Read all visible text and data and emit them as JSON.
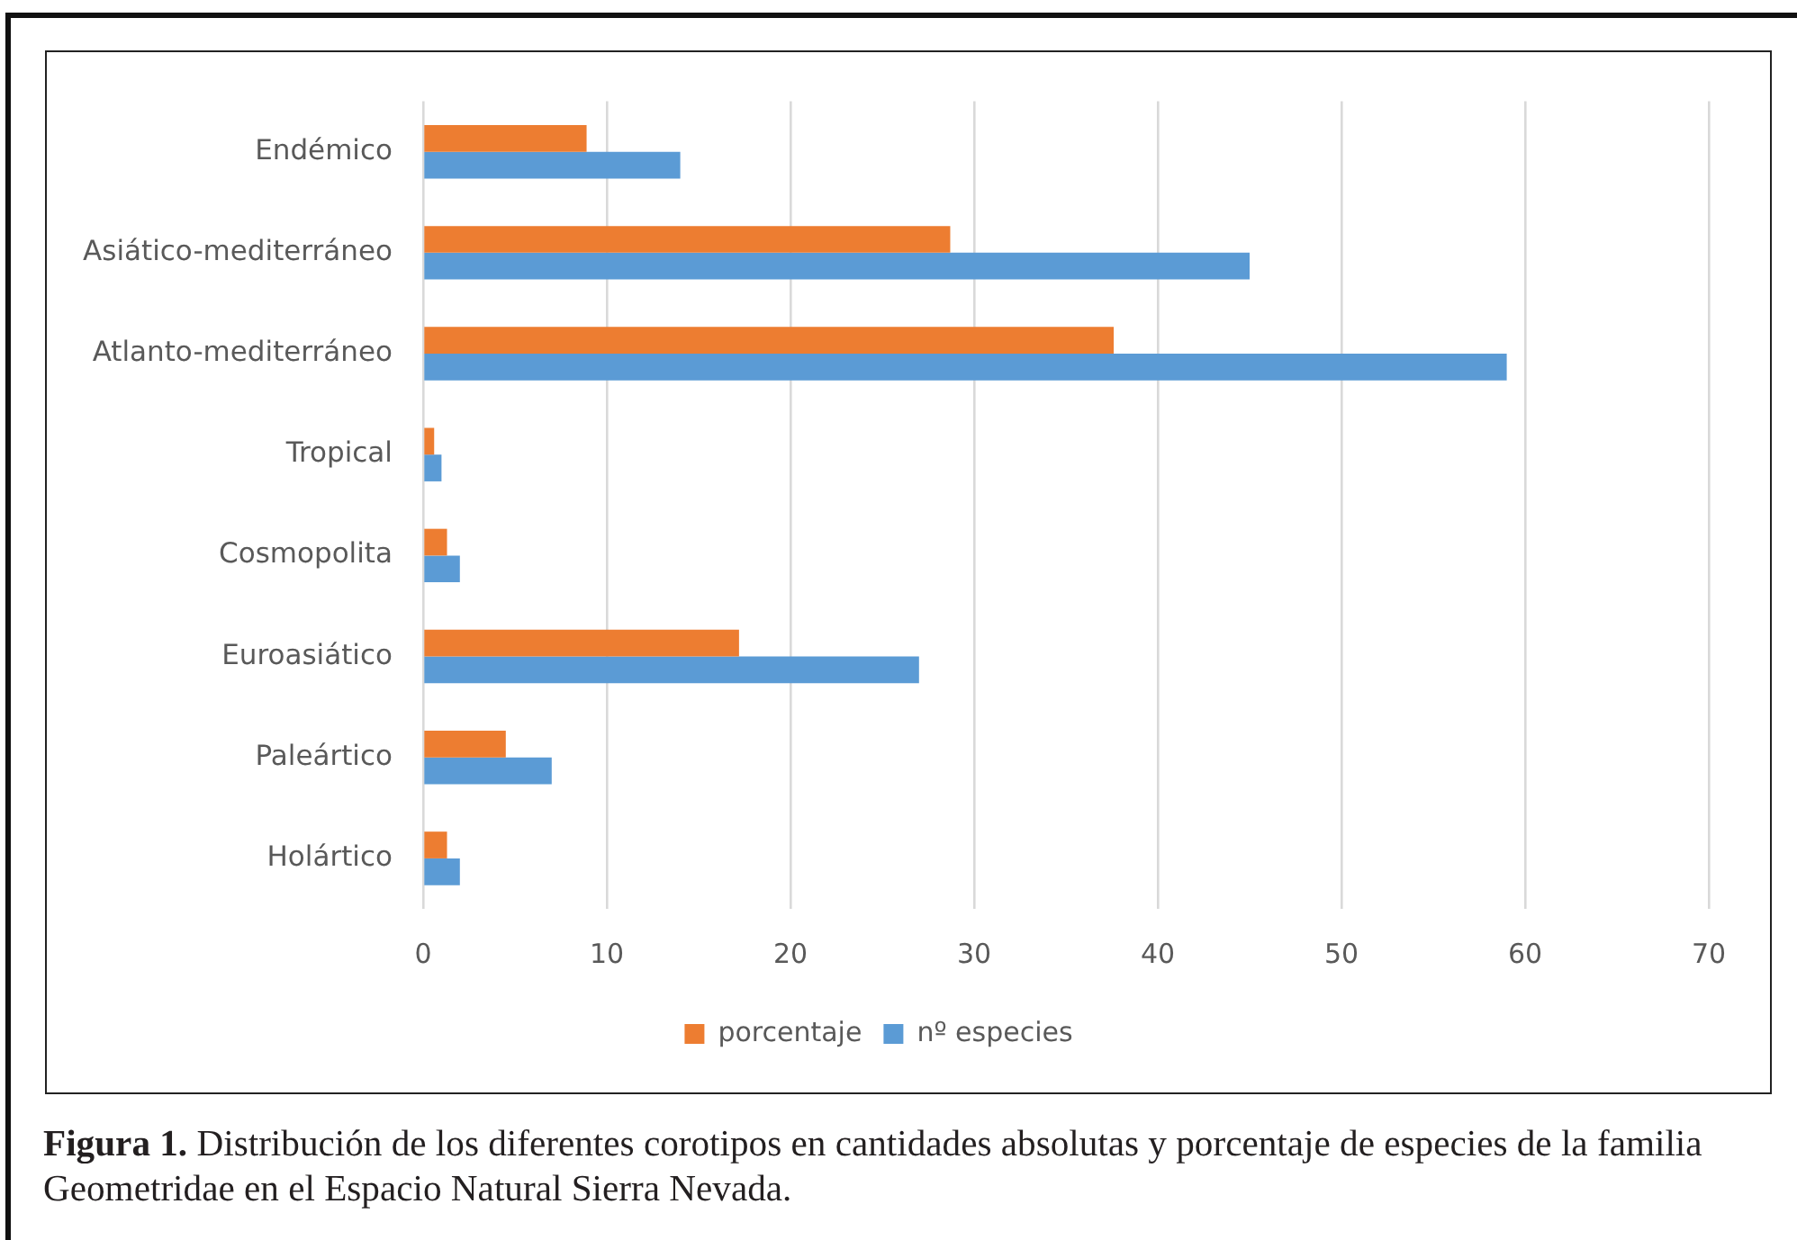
{
  "chart_data": {
    "type": "bar",
    "orientation": "horizontal",
    "categories": [
      "Endémico",
      "Asiático-mediterráneo",
      "Atlanto-mediterráneo",
      "Tropical",
      "Cosmopolita",
      "Euroasiático",
      "Paleártico",
      "Holártico"
    ],
    "series": [
      {
        "name": "porcentaje",
        "color": "#ed7d31",
        "values": [
          8.9,
          28.7,
          37.6,
          0.6,
          1.3,
          17.2,
          4.5,
          1.3
        ]
      },
      {
        "name": "nº especies",
        "color": "#5b9bd5",
        "values": [
          14,
          45,
          59,
          1,
          2,
          27,
          7,
          2
        ]
      }
    ],
    "xlim": [
      0,
      70
    ],
    "xticks": [
      0,
      10,
      20,
      30,
      40,
      50,
      60,
      70
    ],
    "grid": "x",
    "legend": "bottom",
    "annotations": [
      "Figura 1. Distribución de los diferentes corotipos en cantidades absolutas y porcentaje de especies de la familia Geometridae en el Espacio Natural Sierra Nevada."
    ]
  }
}
